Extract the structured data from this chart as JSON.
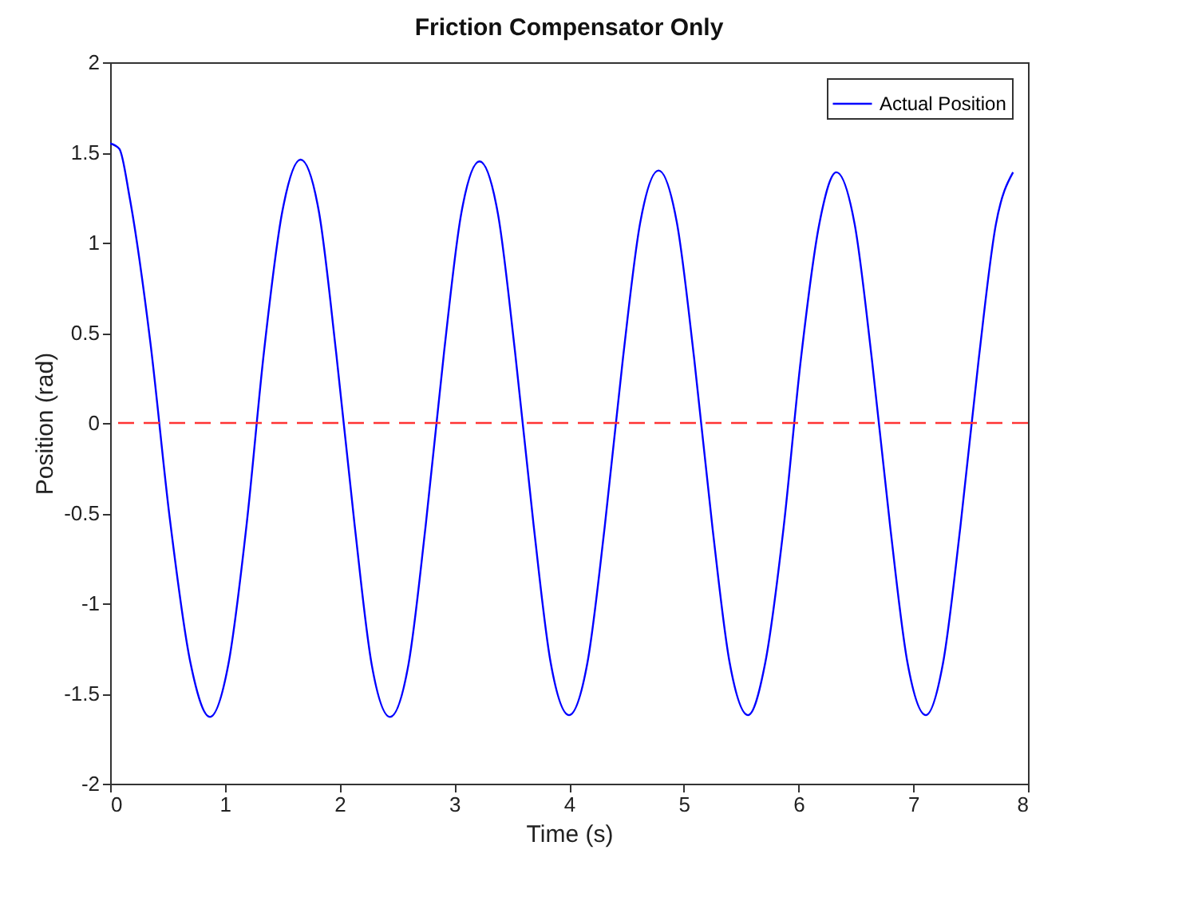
{
  "chart_data": {
    "type": "line",
    "title": "Friction Compensator Only",
    "xlabel": "Time (s)",
    "ylabel": "Position (rad)",
    "xlim": [
      0,
      8
    ],
    "xticks": [
      0,
      1,
      2,
      3,
      4,
      5,
      6,
      7,
      8
    ],
    "ylim": [
      -2,
      2
    ],
    "yticks": [
      -2,
      -1.5,
      -1,
      -0.5,
      0,
      0.5,
      1,
      1.5,
      2
    ],
    "grid": false,
    "legend": "top right",
    "line_style": "solid",
    "ref_lines": [
      {
        "axis": "y",
        "value": 0,
        "color": "#ff3333",
        "line_style": "dashed"
      }
    ],
    "series": [
      {
        "name": "Actual Position",
        "color": "#0000ff",
        "x": [
          0,
          0.08,
          0.17,
          0.35,
          0.52,
          0.7,
          0.87,
          1.03,
          1.19,
          1.34,
          1.5,
          1.66,
          1.82,
          1.97,
          2.13,
          2.28,
          2.44,
          2.6,
          2.75,
          2.91,
          3.06,
          3.22,
          3.38,
          3.53,
          3.69,
          3.84,
          4.0,
          4.16,
          4.31,
          4.47,
          4.62,
          4.78,
          4.94,
          5.09,
          5.25,
          5.4,
          5.56,
          5.71,
          5.87,
          6.02,
          6.18,
          6.33,
          6.49,
          6.64,
          6.8,
          6.95,
          7.11,
          7.26,
          7.41,
          7.57,
          7.72,
          7.87
        ],
        "values": [
          1.55,
          1.52,
          1.25,
          0.45,
          -0.53,
          -1.33,
          -1.63,
          -1.34,
          -0.56,
          0.39,
          1.17,
          1.46,
          1.17,
          0.39,
          -0.56,
          -1.34,
          -1.63,
          -1.34,
          -0.57,
          0.39,
          1.16,
          1.45,
          1.16,
          0.39,
          -0.56,
          -1.33,
          -1.62,
          -1.33,
          -0.58,
          0.36,
          1.11,
          1.4,
          1.11,
          0.36,
          -0.58,
          -1.33,
          -1.62,
          -1.33,
          -0.58,
          0.35,
          1.1,
          1.39,
          1.1,
          0.35,
          -0.58,
          -1.33,
          -1.62,
          -1.33,
          -0.58,
          0.35,
          1.1,
          1.39
        ]
      }
    ]
  }
}
